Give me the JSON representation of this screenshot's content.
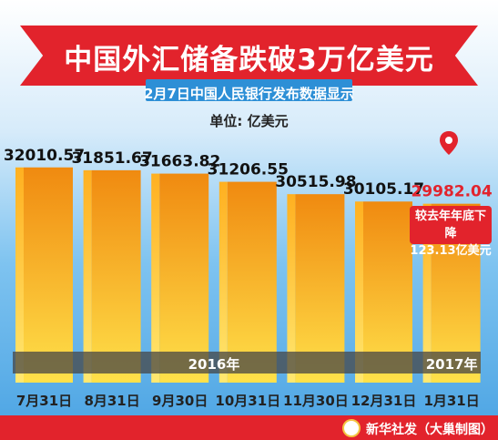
{
  "header": {
    "title": "中国外汇储备跌破3万亿美元",
    "subtitle": "2月7日中国人民银行发布数据显示"
  },
  "chart_data": {
    "type": "bar",
    "unit_label": "单位:  亿美元",
    "categories": [
      "7月31日",
      "8月31日",
      "9月30日",
      "10月31日",
      "11月30日",
      "12月31日",
      "1月31日"
    ],
    "values": [
      32010.57,
      31851.67,
      31663.82,
      31206.55,
      30515.98,
      30105.17,
      29982.04
    ],
    "value_labels": [
      "32010.57",
      "31851.67",
      "31663.82",
      "31206.55",
      "30515.98",
      "30105.17",
      "29982.04"
    ],
    "year_groups": [
      {
        "label": "2016年",
        "categories": 6
      },
      {
        "label": "2017年",
        "categories": 1
      }
    ],
    "highlight_index": 6,
    "annotation": {
      "line1": "较去年年底下降",
      "line2": "123.13亿美元"
    },
    "colors": {
      "bar_top": "#f08a10",
      "bar_bottom": "#ffe14a",
      "bar_side": "#ffcc33",
      "value_text": "#111111",
      "highlight_text": "#e2232c"
    }
  },
  "footer": {
    "credit": "新华社发（大巢制图）"
  }
}
